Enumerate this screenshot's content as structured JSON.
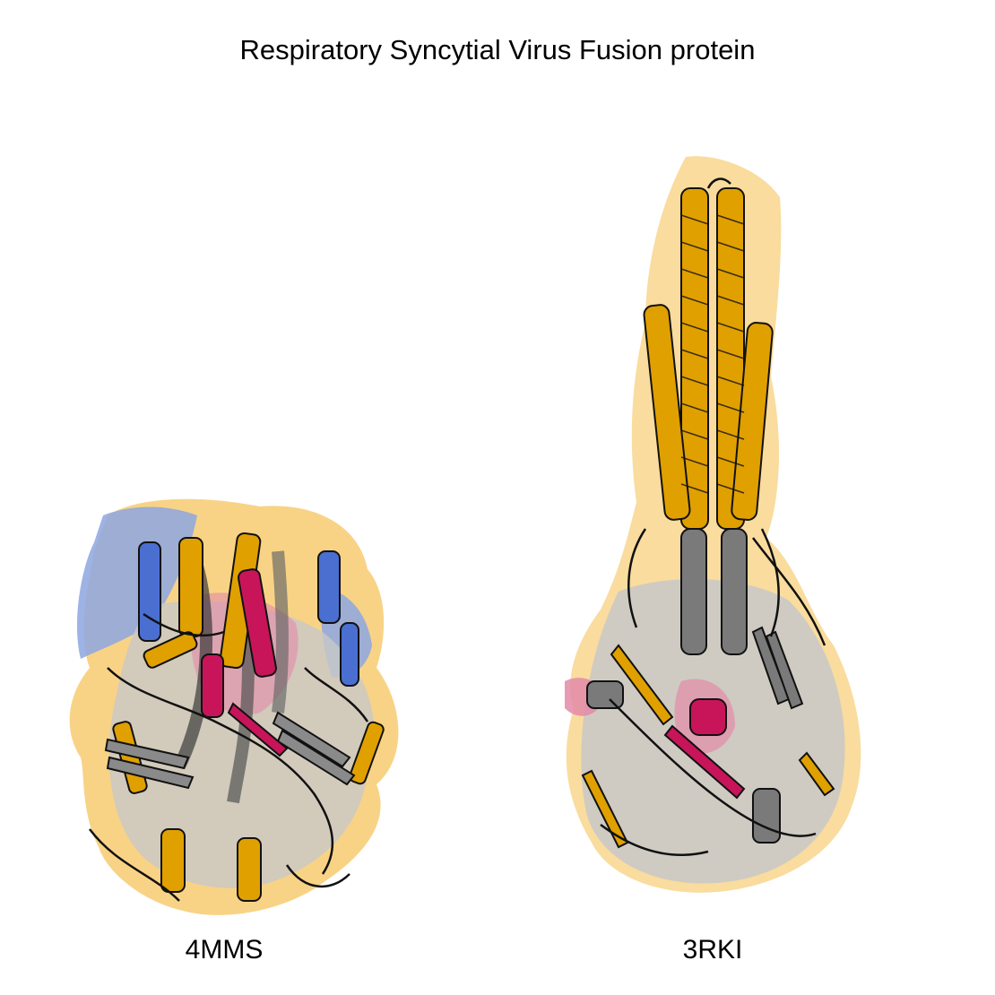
{
  "title": "Respiratory Syncytial Virus Fusion protein",
  "structures": [
    {
      "pdb_id": "4MMS",
      "conformation_colors": {
        "surface_gold": "#f5c45e",
        "surface_blue": "#8da6e0",
        "surface_gray": "#c8c8c8",
        "surface_pink": "#e38aa8"
      }
    },
    {
      "pdb_id": "3RKI",
      "conformation_colors": {
        "surface_gold": "#f5c45e",
        "surface_gray": "#c8c8c8",
        "surface_pink": "#e38aa8"
      }
    }
  ],
  "palette": {
    "helix_orange": "#e0a000",
    "helix_gray": "#7a7a7a",
    "helix_magenta": "#c8155a",
    "helix_blue": "#4a6fd0",
    "outline": "#111111"
  }
}
